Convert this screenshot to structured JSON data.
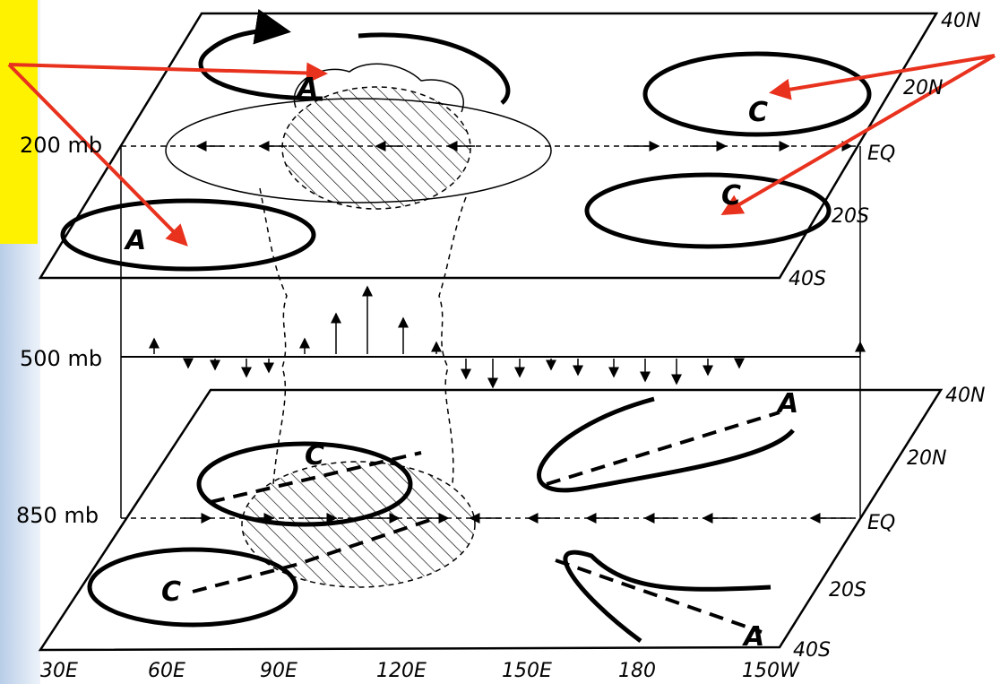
{
  "levels": [
    "200 mb",
    "500 mb",
    "850 mb"
  ],
  "upper_plane": {
    "latitudes": [
      "40N",
      "20N",
      "EQ",
      "20S",
      "40S"
    ],
    "labels": [
      "A",
      "C",
      "C",
      "A"
    ]
  },
  "lower_plane": {
    "latitudes": [
      "40N",
      "20N",
      "EQ",
      "20S",
      "40S"
    ],
    "labels": [
      "A",
      "C",
      "C",
      "A"
    ]
  },
  "longitudes": [
    "30E",
    "60E",
    "90E",
    "120E",
    "150E",
    "180",
    "150W"
  ]
}
